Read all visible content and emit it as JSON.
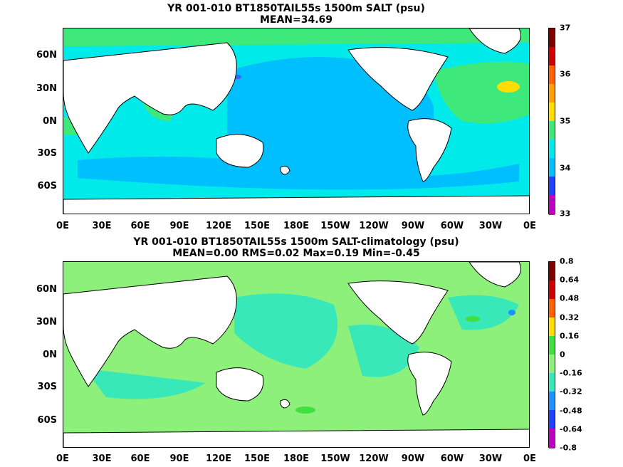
{
  "panel1": {
    "title": "YR 001-010 BT1850TAIL55s 1500m SALT (psu)",
    "subtitle": "MEAN=34.69",
    "colorbar_labels": [
      "37",
      "36",
      "35",
      "34",
      "33"
    ]
  },
  "panel2": {
    "title": "YR 001-010 BT1850TAIL55s 1500m SALT-climatology (psu)",
    "subtitle": "MEAN=0.00   RMS=0.02   Max=0.19   Min=-0.45",
    "colorbar_labels": [
      "0.8",
      "0.64",
      "0.48",
      "0.32",
      "0.16",
      "0",
      "-0.16",
      "-0.32",
      "-0.48",
      "-0.64",
      "-0.8"
    ]
  },
  "lat_labels": [
    "60N",
    "30N",
    "0N",
    "30S",
    "60S"
  ],
  "lon_labels": [
    "0E",
    "30E",
    "60E",
    "90E",
    "120E",
    "150E",
    "180E",
    "150W",
    "120W",
    "90W",
    "60W",
    "30W",
    "0E"
  ],
  "colors": {
    "land": "#ffffff",
    "coast": "#000000",
    "salt_35": "#3ee87a",
    "salt_34_8": "#00eaea",
    "salt_34_6": "#00bfff",
    "salt_35_6": "#ffdd00",
    "anom_0_to_0_16": "#8cf07a",
    "anom_neg_0_to_0_16": "#38e8b8",
    "anom_0_16": "#40e040",
    "anom_neg_0_32": "#1e90ff"
  }
}
